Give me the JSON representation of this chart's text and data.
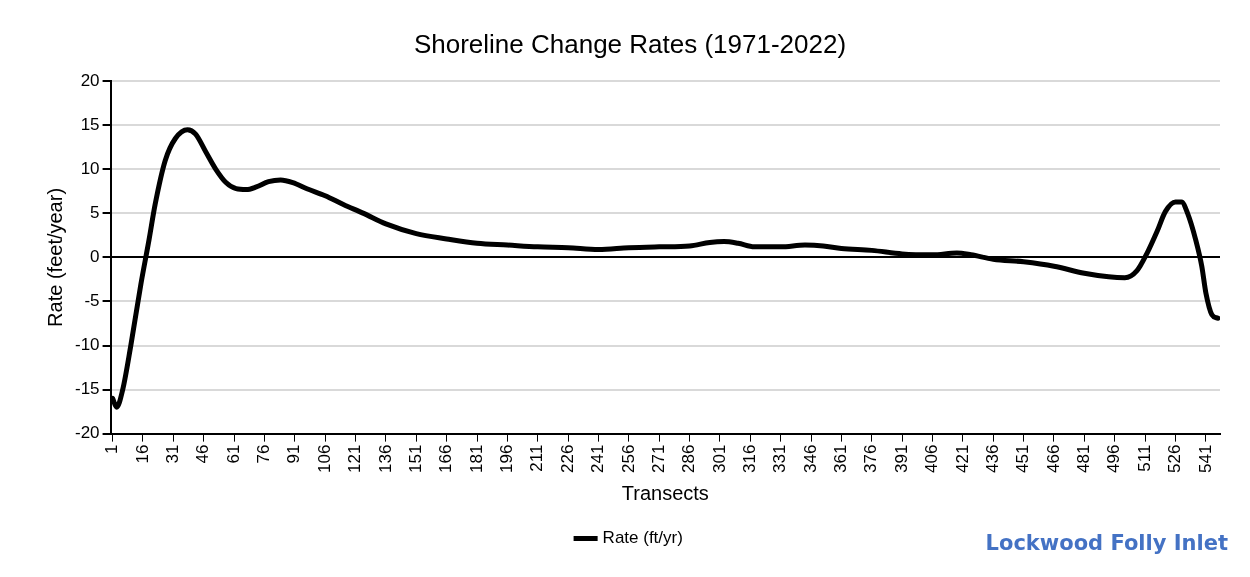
{
  "chart_data": {
    "type": "line",
    "title": "Shoreline Change Rates (1971-2022)",
    "xlabel": "Transects",
    "ylabel": "Rate (feet/year)",
    "annotations": [
      "Lockwood Folly Inlet"
    ],
    "xlim": [
      0,
      548
    ],
    "xticks": [
      1,
      16,
      31,
      46,
      61,
      76,
      91,
      106,
      121,
      136,
      151,
      166,
      181,
      196,
      211,
      226,
      241,
      256,
      271,
      286,
      301,
      316,
      331,
      346,
      361,
      376,
      391,
      406,
      421,
      436,
      451,
      466,
      481,
      496,
      511,
      526,
      541
    ],
    "ylim": [
      -20,
      20
    ],
    "yticks": [
      -20,
      -15,
      -10,
      -5,
      0,
      5,
      10,
      15,
      20
    ],
    "grid": "y",
    "legend": "bottom",
    "marker": "none",
    "line_style": "solid",
    "series": [
      {
        "name": "Rate (ft/yr)",
        "color": "#000000",
        "x": [
          1,
          3,
          6,
          10,
          15,
          19,
          22,
          27,
          32,
          38,
          42,
          47,
          52,
          57,
          62,
          67,
          72,
          78,
          84,
          90,
          97,
          106,
          115,
          125,
          136,
          151,
          166,
          181,
          196,
          211,
          226,
          241,
          256,
          271,
          286,
          296,
          303,
          310,
          318,
          331,
          343,
          352,
          361,
          376,
          391,
          406,
          418,
          425,
          436,
          451,
          466,
          481,
          493,
          501,
          507,
          512,
          517,
          521,
          526,
          529,
          532,
          536,
          539,
          541,
          544,
          547
        ],
        "values": [
          -16,
          -17,
          -15,
          -10,
          -3,
          2,
          6,
          11,
          13.5,
          14.5,
          14,
          12,
          10,
          8.5,
          7.8,
          7.7,
          8,
          8.6,
          8.8,
          8.5,
          7.8,
          7,
          6,
          5,
          3.8,
          2.7,
          2.1,
          1.6,
          1.4,
          1.2,
          1.1,
          0.9,
          1.1,
          1.2,
          1.3,
          1.7,
          1.8,
          1.6,
          1.2,
          1.2,
          1.4,
          1.3,
          1,
          0.8,
          0.4,
          0.3,
          0.5,
          0.3,
          -0.2,
          -0.5,
          -1,
          -1.8,
          -2.2,
          -2.3,
          -1.5,
          0.5,
          3,
          5.2,
          6.3,
          6.3,
          5,
          2,
          -1,
          -4,
          -6.5,
          -6.9
        ]
      }
    ]
  }
}
